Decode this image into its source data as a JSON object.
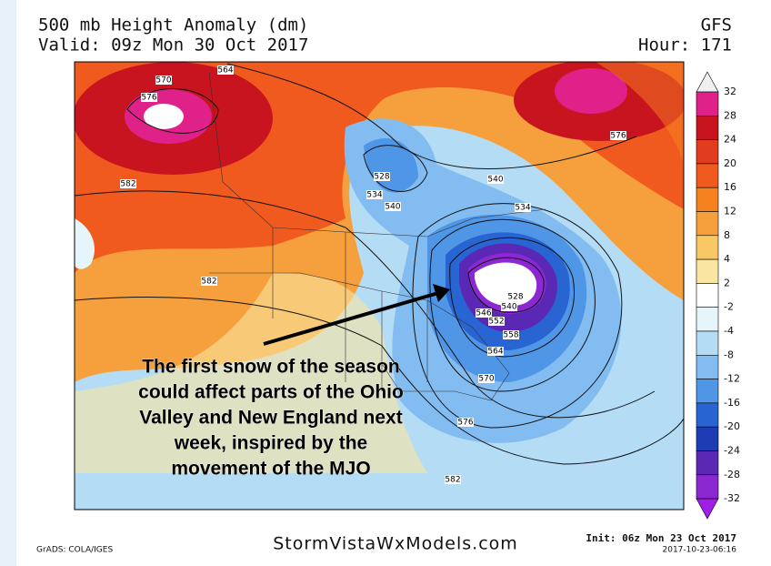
{
  "header": {
    "title": "500 mb Height Anomaly (dm)",
    "valid": "Valid: 09z Mon 30 Oct 2017",
    "model": "GFS",
    "hour": "Hour: 171"
  },
  "annotation": [
    "The first snow of the season",
    "could affect parts of the Ohio",
    "Valley and New England next",
    "week, inspired by the",
    "movement of the MJO"
  ],
  "colorbar": {
    "labels": [
      32,
      28,
      24,
      20,
      16,
      12,
      8,
      4,
      2,
      -2,
      -4,
      -8,
      -12,
      -16,
      -20,
      -24,
      -28,
      -32
    ]
  },
  "contour_labels": [
    "570",
    "564",
    "576",
    "582",
    "528",
    "534",
    "540",
    "540",
    "534",
    "576",
    "582",
    "528",
    "540",
    "546",
    "552",
    "558",
    "564",
    "570",
    "576",
    "582"
  ],
  "footer": {
    "grads": "GrADS: COLA/IGES",
    "site": "StormVistaWxModels.com",
    "init": "Init: 06z Mon 23 Oct 2017",
    "timestamp": "2017-10-23-06:16"
  }
}
